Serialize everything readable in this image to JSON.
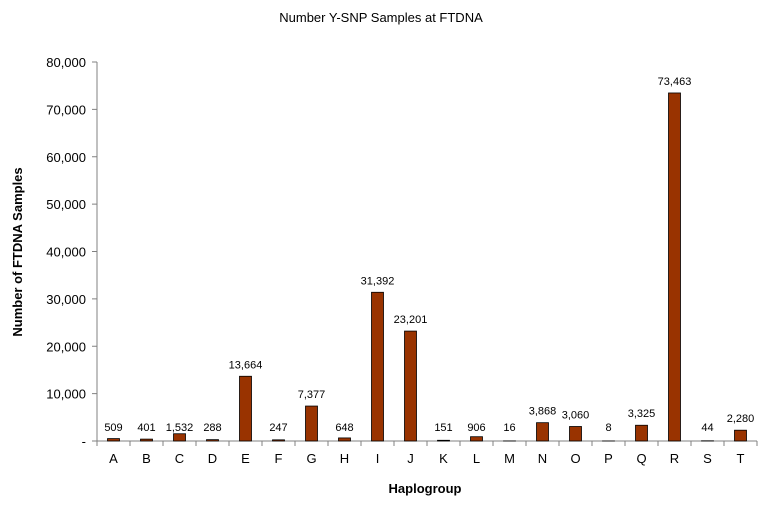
{
  "chart_data": {
    "type": "bar",
    "title": "Number Y-SNP Samples at FTDNA",
    "xlabel": "Haplogroup",
    "ylabel": "Number of FTDNA Samples",
    "categories": [
      "A",
      "B",
      "C",
      "D",
      "E",
      "F",
      "G",
      "H",
      "I",
      "J",
      "K",
      "L",
      "M",
      "N",
      "O",
      "P",
      "Q",
      "R",
      "S",
      "T"
    ],
    "values": [
      509,
      401,
      1532,
      288,
      13664,
      247,
      7377,
      648,
      31392,
      23201,
      151,
      906,
      16,
      3868,
      3060,
      8,
      3325,
      73463,
      44,
      2280
    ],
    "data_labels": [
      "509",
      "401",
      "1,532",
      "288",
      "13,664",
      "247",
      "7,377",
      "648",
      "31,392",
      "23,201",
      "151",
      "906",
      "16",
      "3,868",
      "3,060",
      "8",
      "3,325",
      "73,463",
      "44",
      "2,280"
    ],
    "ylim": [
      0,
      80000
    ],
    "y_ticks": [
      0,
      10000,
      20000,
      30000,
      40000,
      50000,
      60000,
      70000,
      80000
    ],
    "y_tick_labels": [
      "-",
      "10,000",
      "20,000",
      "30,000",
      "40,000",
      "50,000",
      "60,000",
      "70,000",
      "80,000"
    ],
    "grid": false,
    "legend": "none",
    "bar_color": "#993300",
    "bar_outline_color": "#000000",
    "axis_color": "#808080"
  }
}
